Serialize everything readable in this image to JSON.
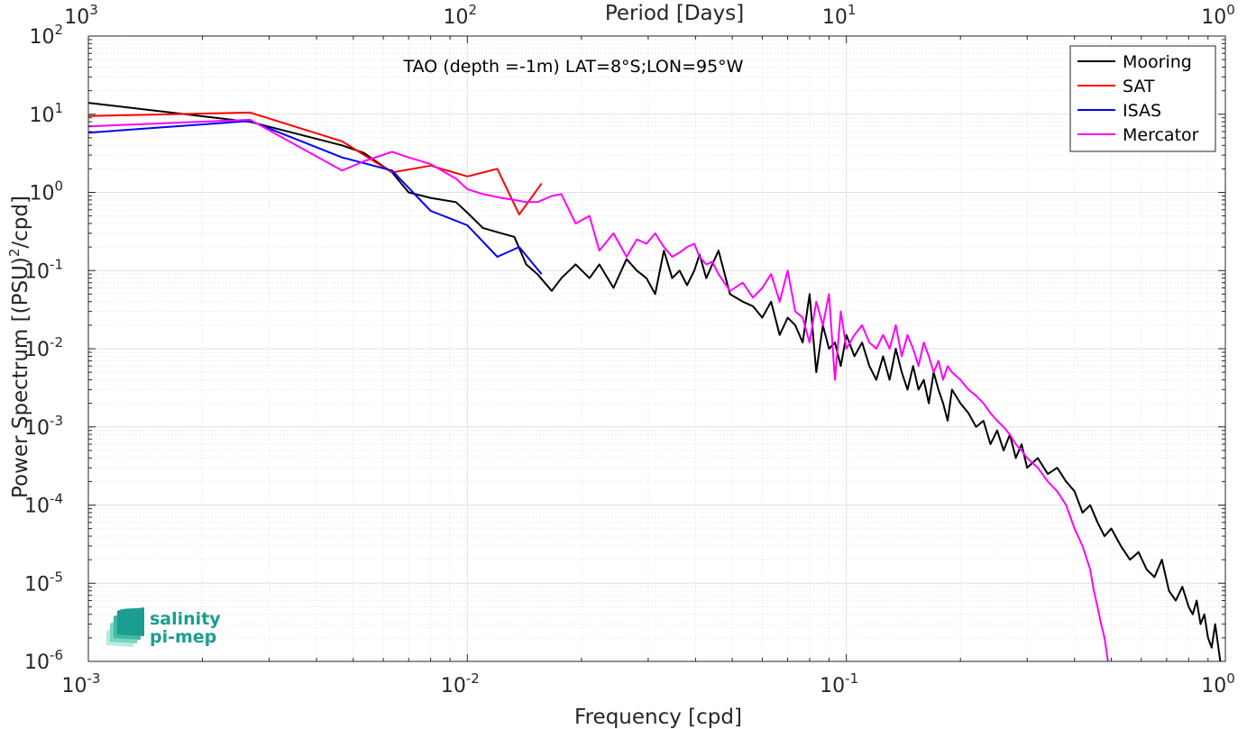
{
  "chart_data": {
    "type": "line",
    "title": "TAO (depth =-1m) LAT=8°S;LON=95°W",
    "xlabel": "Frequency [cpd]",
    "ylabel": "Power Spectrum [(PSU)²/cpd]",
    "ylabel_parts": {
      "main": "Power Spectrum [(PSU)",
      "sup": "2",
      "tail": "/cpd]"
    },
    "top_xlabel": "Period [Days]",
    "xscale": "log",
    "yscale": "log",
    "xlim": [
      0.001,
      1
    ],
    "ylim": [
      1e-06,
      100
    ],
    "grid": true,
    "minor_grid": true,
    "legend_position": "top-right",
    "x_ticks": [
      {
        "value": 0.001,
        "base": "10",
        "exp": "-3"
      },
      {
        "value": 0.01,
        "base": "10",
        "exp": "-2"
      },
      {
        "value": 0.1,
        "base": "10",
        "exp": "-1"
      },
      {
        "value": 1,
        "base": "10",
        "exp": "0"
      }
    ],
    "top_x_ticks": [
      {
        "value": 0.001,
        "base": "10",
        "exp": "3"
      },
      {
        "value": 0.01,
        "base": "10",
        "exp": "2"
      },
      {
        "value": 0.1,
        "base": "10",
        "exp": "1"
      },
      {
        "value": 1,
        "base": "10",
        "exp": "0"
      }
    ],
    "y_ticks": [
      {
        "value": 1e-06,
        "base": "10",
        "exp": "-6"
      },
      {
        "value": 1e-05,
        "base": "10",
        "exp": "-5"
      },
      {
        "value": 0.0001,
        "base": "10",
        "exp": "-4"
      },
      {
        "value": 0.001,
        "base": "10",
        "exp": "-3"
      },
      {
        "value": 0.01,
        "base": "10",
        "exp": "-2"
      },
      {
        "value": 0.1,
        "base": "10",
        "exp": "-1"
      },
      {
        "value": 1,
        "base": "10",
        "exp": "0"
      },
      {
        "value": 10,
        "base": "10",
        "exp": "1"
      },
      {
        "value": 100,
        "base": "10",
        "exp": "2"
      }
    ],
    "series": [
      {
        "name": "Mooring",
        "color": "#000000",
        "x": [
          0.001,
          0.00267,
          0.00467,
          0.00533,
          0.00633,
          0.007,
          0.008,
          0.00933,
          0.01,
          0.011,
          0.0123,
          0.0133,
          0.0143,
          0.0153,
          0.0167,
          0.0177,
          0.0193,
          0.021,
          0.0223,
          0.0243,
          0.0263,
          0.028,
          0.0297,
          0.0313,
          0.033,
          0.0347,
          0.0363,
          0.038,
          0.0397,
          0.041,
          0.0427,
          0.0443,
          0.046,
          0.0493,
          0.0533,
          0.0567,
          0.06,
          0.0633,
          0.0667,
          0.07,
          0.0733,
          0.0767,
          0.08,
          0.0833,
          0.0867,
          0.09,
          0.0933,
          0.0967,
          0.1,
          0.105,
          0.11,
          0.115,
          0.12,
          0.125,
          0.13,
          0.135,
          0.14,
          0.145,
          0.15,
          0.155,
          0.16,
          0.165,
          0.17,
          0.175,
          0.18,
          0.185,
          0.19,
          0.2,
          0.21,
          0.22,
          0.23,
          0.24,
          0.25,
          0.26,
          0.27,
          0.28,
          0.29,
          0.3,
          0.32,
          0.34,
          0.36,
          0.38,
          0.4,
          0.42,
          0.44,
          0.46,
          0.48,
          0.5,
          0.53,
          0.56,
          0.59,
          0.62,
          0.65,
          0.68,
          0.71,
          0.74,
          0.77,
          0.8,
          0.82,
          0.84,
          0.86,
          0.88,
          0.9,
          0.92,
          0.94,
          0.97
        ],
        "y": [
          14,
          8,
          4,
          3.2,
          1.8,
          1.0,
          0.85,
          0.75,
          0.55,
          0.35,
          0.3,
          0.27,
          0.12,
          0.09,
          0.055,
          0.08,
          0.12,
          0.08,
          0.12,
          0.06,
          0.14,
          0.1,
          0.08,
          0.05,
          0.18,
          0.08,
          0.1,
          0.065,
          0.1,
          0.16,
          0.08,
          0.12,
          0.18,
          0.05,
          0.04,
          0.035,
          0.025,
          0.04,
          0.015,
          0.025,
          0.02,
          0.012,
          0.05,
          0.005,
          0.02,
          0.01,
          0.012,
          0.006,
          0.015,
          0.008,
          0.012,
          0.006,
          0.004,
          0.008,
          0.004,
          0.01,
          0.005,
          0.003,
          0.006,
          0.003,
          0.004,
          0.002,
          0.005,
          0.003,
          0.002,
          0.0012,
          0.003,
          0.002,
          0.0015,
          0.001,
          0.0012,
          0.0006,
          0.0009,
          0.0005,
          0.0008,
          0.0004,
          0.0006,
          0.0003,
          0.0004,
          0.00025,
          0.0003,
          0.0002,
          0.00015,
          8e-05,
          0.0001,
          6e-05,
          4e-05,
          5e-05,
          3e-05,
          2e-05,
          2.5e-05,
          1.5e-05,
          1.2e-05,
          2e-05,
          8e-06,
          6e-06,
          9e-06,
          5e-06,
          4e-06,
          6e-06,
          3e-06,
          4e-06,
          2e-06,
          1.5e-06,
          3e-06,
          1e-06
        ]
      },
      {
        "name": "SAT",
        "color": "#ff0000",
        "x": [
          0.001,
          0.00267,
          0.00467,
          0.00633,
          0.008,
          0.01,
          0.012,
          0.0137,
          0.0157
        ],
        "y": [
          9.5,
          10.5,
          4.5,
          1.8,
          2.2,
          1.6,
          2.0,
          0.52,
          1.3
        ]
      },
      {
        "name": "ISAS",
        "color": "#0000ff",
        "x": [
          0.001,
          0.00267,
          0.00467,
          0.00633,
          0.008,
          0.01,
          0.012,
          0.0137,
          0.0157
        ],
        "y": [
          5.8,
          8.2,
          2.8,
          1.9,
          0.58,
          0.38,
          0.15,
          0.2,
          0.09
        ]
      },
      {
        "name": "Mercator",
        "color": "#ff00ff",
        "x": [
          0.001,
          0.00267,
          0.00467,
          0.00533,
          0.00633,
          0.007,
          0.008,
          0.00933,
          0.01,
          0.011,
          0.0123,
          0.0133,
          0.0143,
          0.0153,
          0.0167,
          0.0177,
          0.0193,
          0.021,
          0.0223,
          0.0243,
          0.0263,
          0.028,
          0.0297,
          0.0313,
          0.033,
          0.0347,
          0.0363,
          0.038,
          0.0397,
          0.041,
          0.0427,
          0.0443,
          0.046,
          0.0493,
          0.0533,
          0.0567,
          0.06,
          0.0633,
          0.0667,
          0.07,
          0.0733,
          0.0767,
          0.08,
          0.0833,
          0.0867,
          0.09,
          0.0933,
          0.0967,
          0.1,
          0.105,
          0.11,
          0.115,
          0.12,
          0.125,
          0.13,
          0.135,
          0.14,
          0.145,
          0.15,
          0.155,
          0.16,
          0.165,
          0.17,
          0.175,
          0.18,
          0.185,
          0.19,
          0.2,
          0.21,
          0.22,
          0.23,
          0.24,
          0.25,
          0.26,
          0.27,
          0.28,
          0.29,
          0.3,
          0.32,
          0.34,
          0.36,
          0.38,
          0.4,
          0.42,
          0.44,
          0.45,
          0.46,
          0.47,
          0.48,
          0.49
        ],
        "y": [
          7.0,
          8.5,
          1.9,
          2.5,
          3.3,
          2.8,
          2.3,
          1.5,
          1.1,
          0.95,
          0.85,
          0.8,
          0.75,
          0.75,
          0.9,
          0.95,
          0.4,
          0.5,
          0.18,
          0.3,
          0.15,
          0.25,
          0.22,
          0.3,
          0.2,
          0.15,
          0.17,
          0.2,
          0.22,
          0.15,
          0.12,
          0.13,
          0.09,
          0.055,
          0.07,
          0.045,
          0.06,
          0.09,
          0.04,
          0.1,
          0.03,
          0.025,
          0.012,
          0.04,
          0.02,
          0.05,
          0.004,
          0.03,
          0.01,
          0.015,
          0.02,
          0.012,
          0.01,
          0.015,
          0.01,
          0.02,
          0.008,
          0.015,
          0.01,
          0.006,
          0.012,
          0.008,
          0.005,
          0.007,
          0.004,
          0.006,
          0.005,
          0.004,
          0.003,
          0.0025,
          0.002,
          0.0015,
          0.0012,
          0.001,
          0.0008,
          0.0006,
          0.0005,
          0.0004,
          0.0003,
          0.0002,
          0.00015,
          0.0001,
          5e-05,
          3e-05,
          1.5e-05,
          8e-06,
          5e-06,
          3e-06,
          2e-06,
          1e-06
        ]
      }
    ]
  },
  "logo": {
    "line1": "salinity",
    "line2": "pi-mep",
    "colors": [
      "#1a9e8f",
      "#3fb8a4",
      "#7dd3c0",
      "#b7ebe0"
    ]
  },
  "colors": {
    "axis": "#262626",
    "grid_major": "#e0e0e0",
    "grid_minor": "#ededed"
  }
}
